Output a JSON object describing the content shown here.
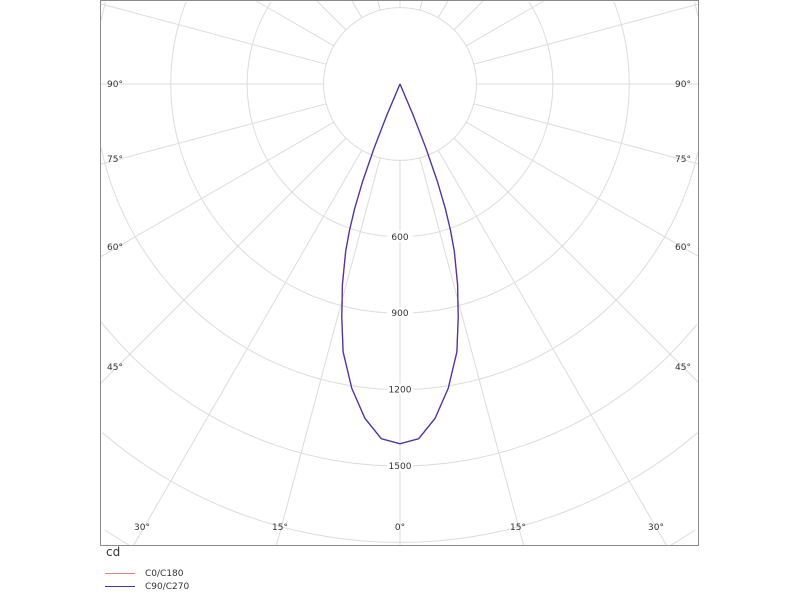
{
  "chart_data": {
    "type": "polar",
    "unit": "cd",
    "radial_ticks": [
      300,
      600,
      900,
      1200,
      1500
    ],
    "radial_tick_labels": [
      "600",
      "900",
      "1200",
      "1500"
    ],
    "radial_max_shown": 1800,
    "angle_step_deg": 15,
    "angle_labels": {
      "left": [
        "90°",
        "75°",
        "60°",
        "45°"
      ],
      "right": [
        "90°",
        "75°",
        "60°",
        "45°"
      ],
      "bottom": [
        "30°",
        "15°",
        "0°",
        "15°",
        "30°"
      ]
    },
    "grid": true,
    "legend_position": "bottom-left",
    "angles_deg": [
      0,
      3,
      6,
      9,
      12,
      14,
      16,
      18,
      19,
      20,
      21,
      22,
      23,
      24
    ],
    "series": [
      {
        "name": "C0/C180",
        "color": "#e57f7f",
        "values": [
          1413,
          1395,
          1320,
          1210,
          1075,
          945,
          820,
          690,
          610,
          520,
          410,
          270,
          130,
          0
        ]
      },
      {
        "name": "C90/C270",
        "color": "#4a35a8",
        "values": [
          1413,
          1395,
          1320,
          1210,
          1075,
          945,
          820,
          690,
          610,
          520,
          410,
          270,
          130,
          0
        ]
      }
    ]
  }
}
